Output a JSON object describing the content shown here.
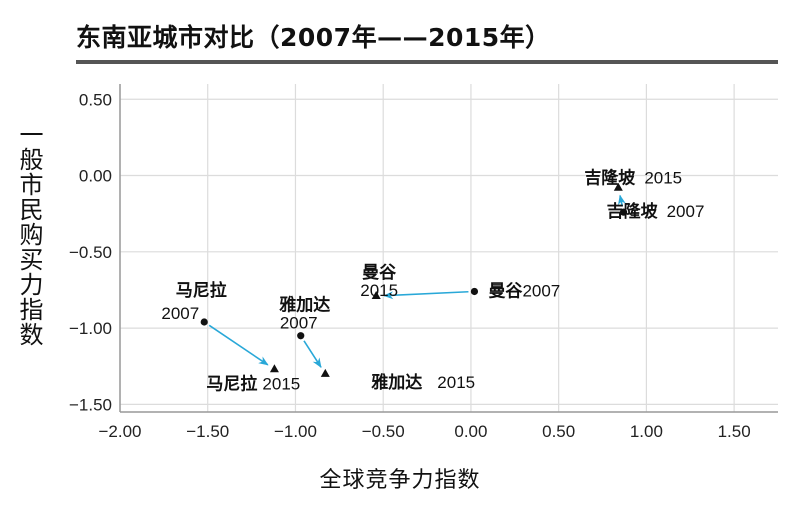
{
  "chart_data": {
    "type": "scatter",
    "title": "东南亚城市对比（2007年——2015年）",
    "xlabel": "全球竞争力指数",
    "ylabel": "一般市民购买力指数",
    "xlim": [
      -2.0,
      1.75
    ],
    "ylim": [
      -1.55,
      0.6
    ],
    "grid": true,
    "xticks": [
      -2.0,
      -1.5,
      -1.0,
      -0.5,
      0.0,
      0.5,
      1.0,
      1.5
    ],
    "xtick_labels": [
      "−2.00",
      "−1.50",
      "−1.00",
      "−0.50",
      "0.00",
      "0.50",
      "1.00",
      "1.50"
    ],
    "yticks": [
      0.5,
      0.0,
      -0.5,
      -1.0,
      -1.5
    ],
    "ytick_labels": [
      "0.50",
      "0.00",
      "−0.50",
      "−1.00",
      "−1.50"
    ],
    "arrow_color": "#29a8d8",
    "series": [
      {
        "name": "吉隆坡",
        "from": {
          "year": "2007",
          "x": 0.87,
          "y": -0.24
        },
        "to": {
          "year": "2015",
          "x": 0.84,
          "y": -0.08
        }
      },
      {
        "name": "曼谷",
        "from": {
          "year": "2007",
          "x": 0.02,
          "y": -0.76
        },
        "to": {
          "year": "2015",
          "x": -0.54,
          "y": -0.79
        }
      },
      {
        "name": "马尼拉",
        "from": {
          "year": "2007",
          "x": -1.52,
          "y": -0.96
        },
        "to": {
          "year": "2015",
          "x": -1.12,
          "y": -1.27
        }
      },
      {
        "name": "雅加达",
        "from": {
          "year": "2007",
          "x": -0.97,
          "y": -1.05
        },
        "to": {
          "year": "2015",
          "x": -0.83,
          "y": -1.3
        }
      }
    ]
  }
}
